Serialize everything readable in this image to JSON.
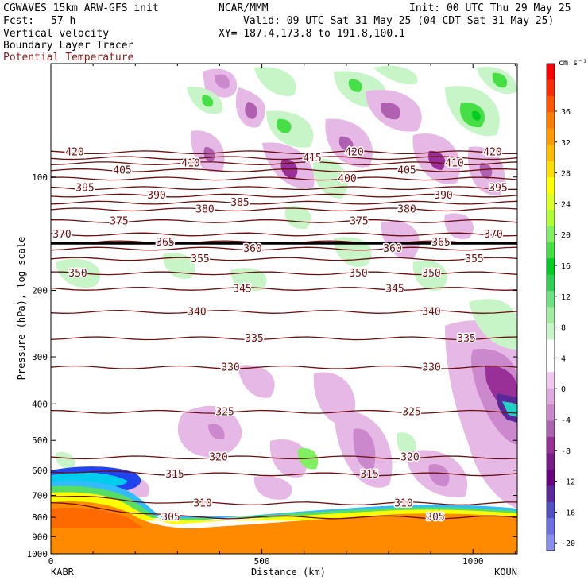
{
  "header": {
    "model": "CGWAVES 15km ARW-GFS init",
    "org": "NCAR/MMM",
    "init": "Init: 00 UTC Thu 29 May 25",
    "fcst_label": "Fcst:",
    "fcst_value": "57 h",
    "valid": "Valid: 09 UTC Sat 31 May 25 (04 CDT Sat 31 May 25)",
    "xy": "XY= 187.4,173.8 to 191.8,100.1",
    "field1": "Vertical velocity",
    "field2": "Boundary Layer Tracer",
    "field3": "Potential Temperature",
    "field3_color": "#8b1a1a"
  },
  "chart_data": {
    "type": "cross-section",
    "xlabel": "Distance (km)",
    "ylabel": "Pressure (hPa), log scale",
    "x_ticks": [
      0,
      500,
      1000
    ],
    "xlim": [
      0,
      1105
    ],
    "y_ticks": [
      100,
      200,
      300,
      400,
      500,
      600,
      700,
      800,
      900,
      1000
    ],
    "y_scale": "log",
    "ylim": [
      1000,
      50
    ],
    "left_endpoint": "KABR",
    "right_endpoint": "KOUN",
    "colorbar": {
      "units": "cm s⁻¹",
      "tick_labels": [
        36,
        32,
        28,
        24,
        20,
        16,
        12,
        8,
        4,
        0,
        -4,
        -8,
        -12,
        -16,
        -20
      ],
      "colors": [
        "#ff0000",
        "#ff2a00",
        "#ff5500",
        "#ff7a00",
        "#ff9a00",
        "#ffbb00",
        "#ffdd00",
        "#ffff00",
        "#ddff22",
        "#b0ff30",
        "#80f060",
        "#46e046",
        "#00cc22",
        "#30d050",
        "#70e080",
        "#a0eea0",
        "#c8f5c8",
        "#ffffff",
        "#ffffff",
        "#f0c8f0",
        "#e0a8e0",
        "#cc88cc",
        "#b060b0",
        "#983098",
        "#7a1a8a",
        "#6a0080",
        "#5a2898",
        "#5050c0",
        "#6a70e0",
        "#8890f0"
      ]
    },
    "theta_contours": [
      {
        "value": 305,
        "p": 800
      },
      {
        "value": 310,
        "p": 735
      },
      {
        "value": 315,
        "p": 615
      },
      {
        "value": 320,
        "p": 555
      },
      {
        "value": 325,
        "p": 420
      },
      {
        "value": 330,
        "p": 320
      },
      {
        "value": 335,
        "p": 268
      },
      {
        "value": 340,
        "p": 228
      },
      {
        "value": 345,
        "p": 198
      },
      {
        "value": 350,
        "p": 180
      },
      {
        "value": 355,
        "p": 165
      },
      {
        "value": 360,
        "p": 155
      },
      {
        "value": 365,
        "p": 149
      },
      {
        "value": 370,
        "p": 142
      },
      {
        "value": 375,
        "p": 131
      },
      {
        "value": 380,
        "p": 122
      },
      {
        "value": 385,
        "p": 117
      },
      {
        "value": 390,
        "p": 112
      },
      {
        "value": 395,
        "p": 107
      },
      {
        "value": 400,
        "p": 101
      },
      {
        "value": 405,
        "p": 96
      },
      {
        "value": 410,
        "p": 92
      },
      {
        "value": 415,
        "p": 89
      },
      {
        "value": 420,
        "p": 86
      }
    ]
  }
}
